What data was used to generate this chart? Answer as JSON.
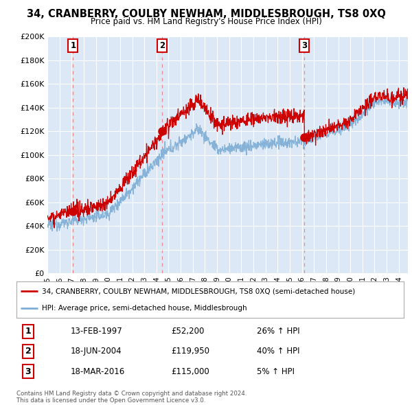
{
  "title": "34, CRANBERRY, COULBY NEWHAM, MIDDLESBROUGH, TS8 0XQ",
  "subtitle": "Price paid vs. HM Land Registry's House Price Index (HPI)",
  "sale_color": "#cc0000",
  "hpi_color": "#7dadd4",
  "vline_color": "#e87878",
  "background_color": "#dce8f5",
  "ylim": [
    0,
    200000
  ],
  "yticks": [
    0,
    20000,
    40000,
    60000,
    80000,
    100000,
    120000,
    140000,
    160000,
    180000,
    200000
  ],
  "ytick_labels": [
    "£0",
    "£20K",
    "£40K",
    "£60K",
    "£80K",
    "£100K",
    "£120K",
    "£140K",
    "£160K",
    "£180K",
    "£200K"
  ],
  "xlim": [
    1995.0,
    2024.75
  ],
  "purchase_dates": [
    1997.12,
    2004.46,
    2016.21
  ],
  "purchase_prices": [
    52200,
    119950,
    115000
  ],
  "purchase_labels": [
    "1",
    "2",
    "3"
  ],
  "legend_entries": [
    "34, CRANBERRY, COULBY NEWHAM, MIDDLESBROUGH, TS8 0XQ (semi-detached house)",
    "HPI: Average price, semi-detached house, Middlesbrough"
  ],
  "table_rows": [
    [
      "1",
      "13-FEB-1997",
      "£52,200",
      "26% ↑ HPI"
    ],
    [
      "2",
      "18-JUN-2004",
      "£119,950",
      "40% ↑ HPI"
    ],
    [
      "3",
      "18-MAR-2016",
      "£115,000",
      "5% ↑ HPI"
    ]
  ],
  "footnote": "Contains HM Land Registry data © Crown copyright and database right 2024.\nThis data is licensed under the Open Government Licence v3.0.",
  "xtick_years": [
    1995,
    1996,
    1997,
    1998,
    1999,
    2000,
    2001,
    2002,
    2003,
    2004,
    2005,
    2006,
    2007,
    2008,
    2009,
    2010,
    2011,
    2012,
    2013,
    2014,
    2015,
    2016,
    2017,
    2018,
    2019,
    2020,
    2021,
    2022,
    2023,
    2024
  ]
}
